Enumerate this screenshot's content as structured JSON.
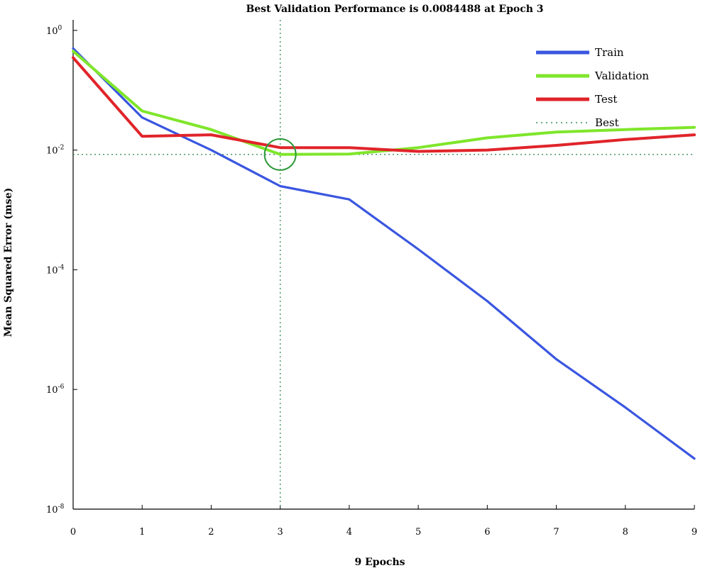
{
  "chart_data": {
    "type": "line",
    "title": "Best Validation Performance is 0.0084488 at Epoch 3",
    "xlabel": "9 Epochs",
    "ylabel": "Mean Squared Error (mse)",
    "yscale": "log",
    "xlim": [
      0,
      9
    ],
    "ylim": [
      1e-08,
      1.5
    ],
    "x_ticks": [
      "0",
      "1",
      "2",
      "3",
      "4",
      "5",
      "6",
      "7",
      "8",
      "9"
    ],
    "y_ticks": [
      {
        "value": 1,
        "base": "10",
        "exp": "0"
      },
      {
        "value": 0.01,
        "base": "10",
        "exp": "-2"
      },
      {
        "value": 0.0001,
        "base": "10",
        "exp": "-4"
      },
      {
        "value": 1e-06,
        "base": "10",
        "exp": "-6"
      },
      {
        "value": 1e-08,
        "base": "10",
        "exp": "-8"
      }
    ],
    "x": [
      0,
      1,
      2,
      3,
      4,
      5,
      6,
      7,
      8,
      9
    ],
    "series": [
      {
        "name": "Train",
        "color": "#3a56e0",
        "values": [
          0.5,
          0.035,
          0.01,
          0.0025,
          0.0015,
          0.00022,
          3e-05,
          3.2e-06,
          5e-07,
          7e-08
        ]
      },
      {
        "name": "Validation",
        "color": "#7fe62b",
        "values": [
          0.45,
          0.045,
          0.022,
          0.0084488,
          0.0086,
          0.011,
          0.016,
          0.02,
          0.022,
          0.024
        ]
      },
      {
        "name": "Test",
        "color": "#e0242a",
        "values": [
          0.35,
          0.017,
          0.018,
          0.011,
          0.011,
          0.0095,
          0.01,
          0.012,
          0.015,
          0.018
        ]
      }
    ],
    "best": {
      "name": "Best",
      "epoch": 3,
      "value": 0.0084488,
      "color": "#3a8f5a"
    },
    "legend_position": "top-right"
  }
}
